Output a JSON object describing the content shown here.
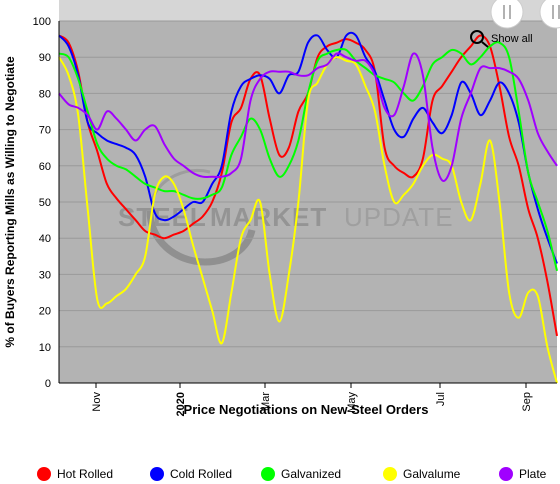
{
  "chart_data": {
    "type": "line",
    "xlabel": "Price Negotiations on New Steel Orders",
    "ylabel": "% of Buyers Reporting Mills as Willing to Negotiate",
    "ylim": [
      0,
      100
    ],
    "yticks": [
      0,
      10,
      20,
      30,
      40,
      50,
      60,
      70,
      80,
      90,
      100
    ],
    "xticks": [
      {
        "label": "Nov",
        "bold": false
      },
      {
        "label": "2020",
        "bold": true
      },
      {
        "label": "Mar",
        "bold": false
      },
      {
        "label": "May",
        "bold": false
      },
      {
        "label": "Jul",
        "bold": false
      },
      {
        "label": "Sep",
        "bold": false
      }
    ],
    "background": "#b3b3b3",
    "grid": true,
    "legend": "bottom",
    "watermark": {
      "part1": "STEEL",
      "part2": "MARKET",
      "part3": "UPDATE"
    },
    "zoom_button": "Show all",
    "series": [
      {
        "name": "Hot Rolled",
        "color": "#ff0000",
        "values": [
          96,
          94,
          86,
          72,
          64,
          55,
          51,
          48,
          45,
          42,
          41,
          40,
          41,
          42,
          44,
          46,
          50,
          58,
          72,
          76,
          84,
          85,
          73,
          63,
          65,
          75,
          80,
          90,
          93,
          94,
          95,
          94,
          92,
          86,
          65,
          60,
          58,
          57,
          62,
          78,
          82,
          86,
          90,
          93,
          96,
          93,
          82,
          68,
          60,
          48,
          40,
          28,
          13
        ]
      },
      {
        "name": "Cold Rolled",
        "color": "#0000ff",
        "values": [
          96,
          93,
          85,
          72,
          69,
          67,
          66,
          65,
          63,
          57,
          47,
          45,
          46,
          48,
          50,
          50,
          55,
          60,
          75,
          82,
          84,
          85,
          84,
          80,
          85,
          86,
          94,
          96,
          92,
          90,
          96,
          96,
          90,
          86,
          78,
          70,
          68,
          73,
          76,
          72,
          69,
          74,
          83,
          80,
          74,
          78,
          83,
          80,
          72,
          58,
          48,
          40,
          33
        ]
      },
      {
        "name": "Galvanized",
        "color": "#00ff00",
        "values": [
          91,
          90,
          84,
          75,
          66,
          62,
          60,
          59,
          57,
          55,
          54,
          53,
          53,
          52,
          51,
          51,
          52,
          54,
          63,
          68,
          73,
          70,
          62,
          57,
          60,
          67,
          80,
          89,
          91,
          92,
          92,
          89,
          87,
          85,
          84,
          83,
          80,
          78,
          82,
          88,
          90,
          92,
          91,
          88,
          90,
          93,
          94,
          90,
          75,
          58,
          50,
          42,
          31
        ]
      },
      {
        "name": "Galvalume",
        "color": "#ffff00",
        "values": [
          90,
          85,
          74,
          48,
          23,
          22,
          24,
          26,
          30,
          35,
          52,
          57,
          55,
          48,
          38,
          29,
          20,
          11,
          25,
          40,
          45,
          50,
          30,
          17,
          30,
          50,
          78,
          83,
          88,
          90,
          89,
          88,
          82,
          75,
          60,
          50,
          52,
          55,
          60,
          63,
          62,
          60,
          50,
          45,
          55,
          67,
          50,
          25,
          18,
          25,
          24,
          10,
          0
        ]
      },
      {
        "name": "Plate",
        "color": "#a000ff",
        "values": [
          80,
          77,
          76,
          74,
          70,
          75,
          73,
          70,
          67,
          70,
          71,
          66,
          62,
          60,
          58,
          57,
          57,
          57,
          58,
          62,
          78,
          84,
          86,
          86,
          86,
          85,
          85,
          87,
          88,
          91,
          90,
          89,
          89,
          85,
          76,
          74,
          82,
          91,
          85,
          65,
          56,
          60,
          73,
          80,
          87,
          87,
          87,
          86,
          84,
          78,
          69,
          64,
          60
        ]
      }
    ]
  }
}
